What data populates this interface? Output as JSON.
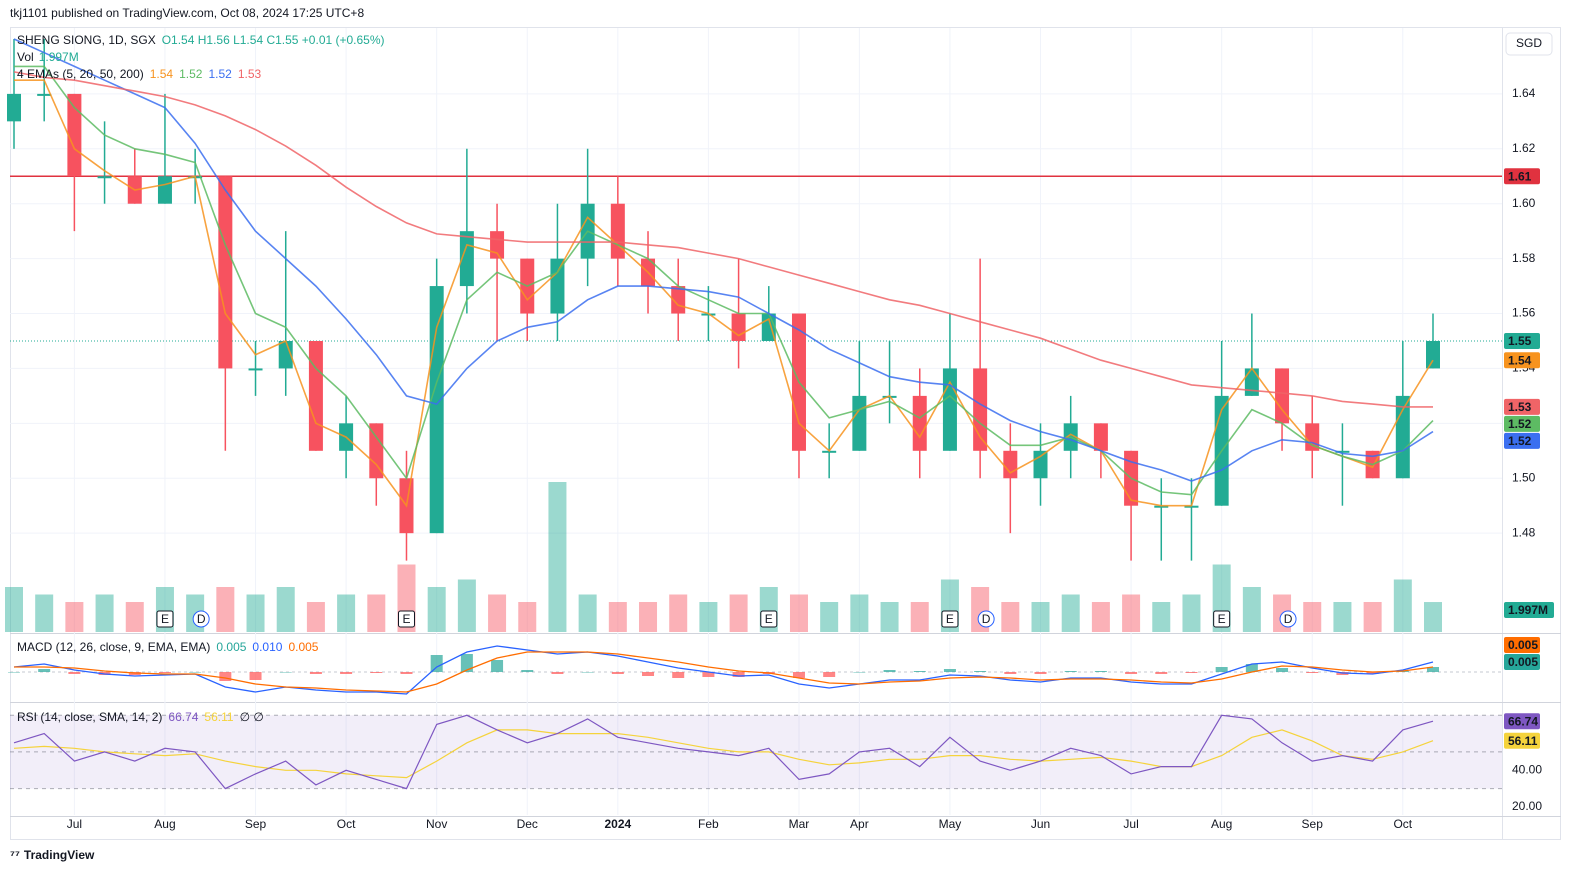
{
  "header": {
    "published": "tkj1101 published on TradingView.com, Oct 08, 2024 17:25 UTC+8",
    "currency": "SGD"
  },
  "footer": {
    "brand": "TradingView"
  },
  "chart_data": {
    "type": "candlestick",
    "title": "SHENG SIONG, 1D, SGX",
    "ohlc_legend": "O1.54 H1.56 L1.54 C1.55 +0.01 (+0.65%)",
    "categories": [
      null,
      null,
      "Jul",
      null,
      null,
      "Aug",
      null,
      null,
      "Sep",
      null,
      null,
      "Oct",
      null,
      null,
      "Nov",
      null,
      null,
      "Dec",
      null,
      null,
      "2024",
      null,
      null,
      "Feb",
      null,
      null,
      "Mar",
      null,
      "Apr",
      null,
      null,
      "May",
      null,
      null,
      "Jun",
      null,
      null,
      "Jul",
      null,
      null,
      "Aug",
      null,
      null,
      "Sep",
      null,
      null,
      "Oct",
      null
    ],
    "open": [
      1.63,
      1.64,
      1.64,
      1.61,
      1.61,
      1.6,
      1.61,
      1.61,
      1.54,
      1.54,
      1.55,
      1.51,
      1.52,
      1.5,
      1.48,
      1.57,
      1.59,
      1.58,
      1.56,
      1.58,
      1.6,
      1.58,
      1.57,
      1.56,
      1.56,
      1.55,
      1.56,
      1.51,
      1.51,
      1.53,
      1.53,
      1.51,
      1.54,
      1.51,
      1.5,
      1.51,
      1.52,
      1.51,
      1.49,
      1.49,
      1.49,
      1.53,
      1.54,
      1.52,
      1.51,
      1.51,
      1.5,
      1.54
    ],
    "high": [
      1.66,
      1.66,
      1.64,
      1.63,
      1.62,
      1.64,
      1.62,
      1.61,
      1.55,
      1.59,
      1.55,
      1.53,
      1.52,
      1.51,
      1.58,
      1.62,
      1.6,
      1.58,
      1.6,
      1.62,
      1.61,
      1.59,
      1.58,
      1.57,
      1.58,
      1.57,
      1.56,
      1.52,
      1.55,
      1.55,
      1.54,
      1.56,
      1.58,
      1.52,
      1.52,
      1.53,
      1.52,
      1.51,
      1.5,
      1.5,
      1.55,
      1.56,
      1.54,
      1.53,
      1.52,
      1.51,
      1.55,
      1.56
    ],
    "low": [
      1.62,
      1.63,
      1.59,
      1.6,
      1.6,
      1.6,
      1.6,
      1.51,
      1.53,
      1.53,
      1.51,
      1.5,
      1.49,
      1.47,
      1.48,
      1.56,
      1.55,
      1.55,
      1.55,
      1.57,
      1.57,
      1.56,
      1.55,
      1.55,
      1.54,
      1.55,
      1.5,
      1.5,
      1.51,
      1.52,
      1.5,
      1.51,
      1.5,
      1.48,
      1.49,
      1.5,
      1.5,
      1.47,
      1.47,
      1.47,
      1.49,
      1.53,
      1.51,
      1.5,
      1.49,
      1.5,
      1.5,
      1.54
    ],
    "close": [
      1.64,
      1.64,
      1.61,
      1.61,
      1.6,
      1.61,
      1.61,
      1.54,
      1.54,
      1.55,
      1.51,
      1.52,
      1.5,
      1.48,
      1.57,
      1.59,
      1.58,
      1.56,
      1.58,
      1.6,
      1.58,
      1.57,
      1.56,
      1.56,
      1.55,
      1.56,
      1.51,
      1.51,
      1.53,
      1.53,
      1.51,
      1.54,
      1.51,
      1.5,
      1.51,
      1.52,
      1.51,
      1.49,
      1.49,
      1.49,
      1.53,
      1.54,
      1.52,
      1.51,
      1.51,
      1.5,
      1.53,
      1.55
    ],
    "up_color": "#22ab94",
    "down_color": "#f7525f",
    "ylim": [
      1.444,
      1.664
    ],
    "yticks": [
      1.48,
      {
        "value": 1.5,
        "label": "1.50"
      },
      1.52,
      1.54,
      1.56,
      1.58,
      {
        "value": 1.6,
        "label": "1.60"
      },
      1.62,
      1.64
    ],
    "grid": true,
    "hline": {
      "value": 1.61,
      "color": "#e0323f"
    },
    "volume": {
      "label": "Vol",
      "last_label": "1.997M",
      "values": [
        3,
        2.5,
        2,
        2.5,
        2,
        3,
        2.5,
        3,
        2.5,
        3,
        2,
        2.5,
        2.5,
        4.5,
        3,
        3.5,
        2.5,
        2,
        10,
        2.5,
        2,
        2,
        2.5,
        2,
        2.5,
        3,
        2.5,
        2,
        2.5,
        2,
        2,
        3.5,
        3,
        2,
        2,
        2.5,
        2,
        2.5,
        2,
        2.5,
        4.5,
        3,
        2.5,
        2,
        2,
        2,
        3.5,
        1.997
      ]
    },
    "emas": {
      "label": "4 EMAs (5, 20, 50, 200)",
      "series": [
        {
          "color": "#f7931e",
          "last_label": "1.54",
          "values": [
            1.645,
            1.645,
            1.62,
            1.612,
            1.605,
            1.607,
            1.61,
            1.56,
            1.545,
            1.55,
            1.52,
            1.515,
            1.505,
            1.49,
            1.555,
            1.585,
            1.582,
            1.565,
            1.575,
            1.595,
            1.585,
            1.575,
            1.563,
            1.56,
            1.552,
            1.558,
            1.52,
            1.51,
            1.525,
            1.53,
            1.515,
            1.535,
            1.515,
            1.502,
            1.508,
            1.516,
            1.51,
            1.492,
            1.49,
            1.49,
            1.525,
            1.54,
            1.525,
            1.512,
            1.508,
            1.504,
            1.525,
            1.543
          ]
        },
        {
          "color": "#5dbb63",
          "last_label": "1.52",
          "values": [
            1.65,
            1.65,
            1.635,
            1.625,
            1.62,
            1.618,
            1.615,
            1.585,
            1.56,
            1.555,
            1.54,
            1.53,
            1.515,
            1.5,
            1.535,
            1.565,
            1.575,
            1.57,
            1.575,
            1.59,
            1.585,
            1.58,
            1.57,
            1.565,
            1.56,
            1.56,
            1.535,
            1.522,
            1.525,
            1.528,
            1.522,
            1.53,
            1.52,
            1.512,
            1.512,
            1.515,
            1.51,
            1.5,
            1.495,
            1.494,
            1.51,
            1.525,
            1.52,
            1.512,
            1.508,
            1.505,
            1.51,
            1.521
          ]
        },
        {
          "color": "#3b6ff0",
          "last_label": "1.52",
          "values": [
            1.66,
            1.655,
            1.65,
            1.645,
            1.64,
            1.635,
            1.622,
            1.605,
            1.59,
            1.58,
            1.57,
            1.558,
            1.545,
            1.53,
            1.527,
            1.54,
            1.55,
            1.555,
            1.557,
            1.565,
            1.57,
            1.57,
            1.569,
            1.568,
            1.566,
            1.56,
            1.554,
            1.547,
            1.542,
            1.537,
            1.535,
            1.534,
            1.527,
            1.521,
            1.517,
            1.514,
            1.51,
            1.506,
            1.503,
            1.499,
            1.503,
            1.51,
            1.514,
            1.513,
            1.509,
            1.508,
            1.51,
            1.517
          ]
        },
        {
          "color": "#f06467",
          "last_label": "1.53",
          "values": [
            1.648,
            1.646,
            1.645,
            1.643,
            1.641,
            1.639,
            1.636,
            1.632,
            1.627,
            1.621,
            1.614,
            1.606,
            1.599,
            1.593,
            1.589,
            1.588,
            1.587,
            1.586,
            1.586,
            1.586,
            1.586,
            1.585,
            1.584,
            1.582,
            1.58,
            1.577,
            1.574,
            1.571,
            1.568,
            1.565,
            1.563,
            1.56,
            1.557,
            1.554,
            1.551,
            1.547,
            1.543,
            1.54,
            1.537,
            1.534,
            1.533,
            1.532,
            1.531,
            1.53,
            1.528,
            1.527,
            1.526,
            1.526
          ]
        }
      ]
    },
    "earnings_label": "E",
    "earnings": [
      5,
      13,
      25,
      31,
      40
    ],
    "dividend_label": "D",
    "dividends": [
      6,
      32,
      42
    ],
    "macd": {
      "label": "MACD (12, 26, close, 9, EMA, EMA)",
      "ylim": [
        -0.028,
        0.036
      ],
      "histogram": {
        "up_color": "#26a69a",
        "down_color": "#ff5252",
        "last_label": "0.005",
        "values": [
          0,
          0.003,
          -0.002,
          -0.003,
          -0.003,
          -0.001,
          0,
          -0.009,
          -0.008,
          0,
          -0.002,
          -0.002,
          -0.001,
          -0.002,
          0.017,
          0.018,
          0.012,
          0.002,
          -0.002,
          0,
          -0.002,
          -0.004,
          -0.006,
          -0.005,
          -0.005,
          -0.002,
          -0.006,
          -0.005,
          0,
          0.002,
          0.001,
          0.003,
          0.001,
          -0.002,
          -0.002,
          0.001,
          0.001,
          -0.002,
          -0.002,
          -0.001,
          0.005,
          0.008,
          0.004,
          -0.001,
          -0.003,
          -0.002,
          0.001,
          0.005
        ]
      },
      "macd": {
        "color": "#2962ff",
        "last_label": "0.010",
        "values": [
          0.005,
          0.008,
          0.002,
          -0.002,
          -0.004,
          -0.003,
          -0.002,
          -0.015,
          -0.02,
          -0.015,
          -0.018,
          -0.02,
          -0.02,
          -0.022,
          0.005,
          0.02,
          0.026,
          0.022,
          0.018,
          0.02,
          0.016,
          0.01,
          0.004,
          0,
          -0.004,
          -0.003,
          -0.012,
          -0.016,
          -0.012,
          -0.008,
          -0.008,
          -0.003,
          -0.004,
          -0.008,
          -0.01,
          -0.006,
          -0.006,
          -0.01,
          -0.012,
          -0.012,
          -0.002,
          0.008,
          0.01,
          0.004,
          -0.001,
          -0.002,
          0.002,
          0.01
        ]
      },
      "signal": {
        "color": "#ff6d00",
        "last_label": "0.005",
        "values": [
          0.005,
          0.005,
          0.004,
          0.001,
          -0.001,
          -0.002,
          -0.002,
          -0.006,
          -0.012,
          -0.015,
          -0.016,
          -0.018,
          -0.019,
          -0.02,
          -0.012,
          0.002,
          0.014,
          0.02,
          0.02,
          0.02,
          0.018,
          0.014,
          0.01,
          0.005,
          0.001,
          -0.001,
          -0.006,
          -0.011,
          -0.012,
          -0.01,
          -0.009,
          -0.006,
          -0.005,
          -0.006,
          -0.008,
          -0.007,
          -0.007,
          -0.008,
          -0.01,
          -0.011,
          -0.007,
          0,
          0.006,
          0.005,
          0.002,
          0,
          0.001,
          0.005
        ]
      }
    },
    "rsi": {
      "label": "RSI (14, close, SMA, 14, 2)",
      "extra": "∅ ∅",
      "ylim": [
        15.6,
        75.6
      ],
      "yticks": [
        {
          "value": 20,
          "label": "20.00"
        },
        {
          "value": 40,
          "label": "40.00"
        }
      ],
      "levels": [
        70,
        50,
        30
      ],
      "band_color": "#7e57c2",
      "rsi": {
        "color": "#7e57c2",
        "values": [
          55,
          60,
          45,
          50,
          45,
          52,
          50,
          30,
          38,
          45,
          32,
          40,
          35,
          30,
          65,
          70,
          62,
          55,
          60,
          68,
          58,
          55,
          52,
          50,
          48,
          52,
          35,
          38,
          50,
          52,
          42,
          58,
          45,
          40,
          45,
          52,
          48,
          38,
          42,
          42,
          70,
          68,
          55,
          45,
          48,
          45,
          62,
          66.74
        ]
      },
      "sma": {
        "color": "#f5d33c",
        "values": [
          52,
          53,
          52,
          50,
          49,
          48,
          49,
          45,
          42,
          40,
          40,
          38,
          37,
          36,
          45,
          55,
          62,
          62,
          60,
          60,
          60,
          58,
          55,
          52,
          50,
          50,
          46,
          43,
          44,
          46,
          46,
          48,
          48,
          46,
          45,
          46,
          47,
          45,
          42,
          42,
          48,
          58,
          62,
          56,
          48,
          46,
          50,
          56.11
        ]
      }
    }
  }
}
